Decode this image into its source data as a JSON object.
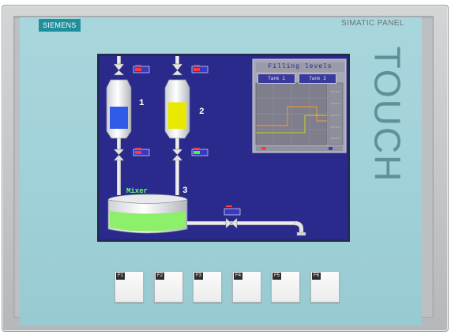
{
  "device": {
    "brand": "SIEMENS",
    "model": "SIMATIC PANEL",
    "touch_label": "TOUCH"
  },
  "hmi": {
    "tank_labels": [
      "1",
      "2",
      "3"
    ],
    "mixer_label": "Mixer",
    "trend": {
      "title": "Filling levels",
      "tabs": [
        "Tank 1",
        "Tank 2"
      ]
    },
    "tanks": [
      {
        "level": 0.5,
        "color": "#2f5be8"
      },
      {
        "level": 0.6,
        "color": "#e8e800"
      }
    ],
    "mixer_level": 0.55,
    "colors": {
      "screen_bg": "#2a2a8c",
      "mixer_fill": "#8df06a",
      "tank2_fill": "#e8e800",
      "tank1_fill": "#2f5be8"
    }
  },
  "function_keys": [
    "F1",
    "F2",
    "F3",
    "F4",
    "F5",
    "F6"
  ]
}
